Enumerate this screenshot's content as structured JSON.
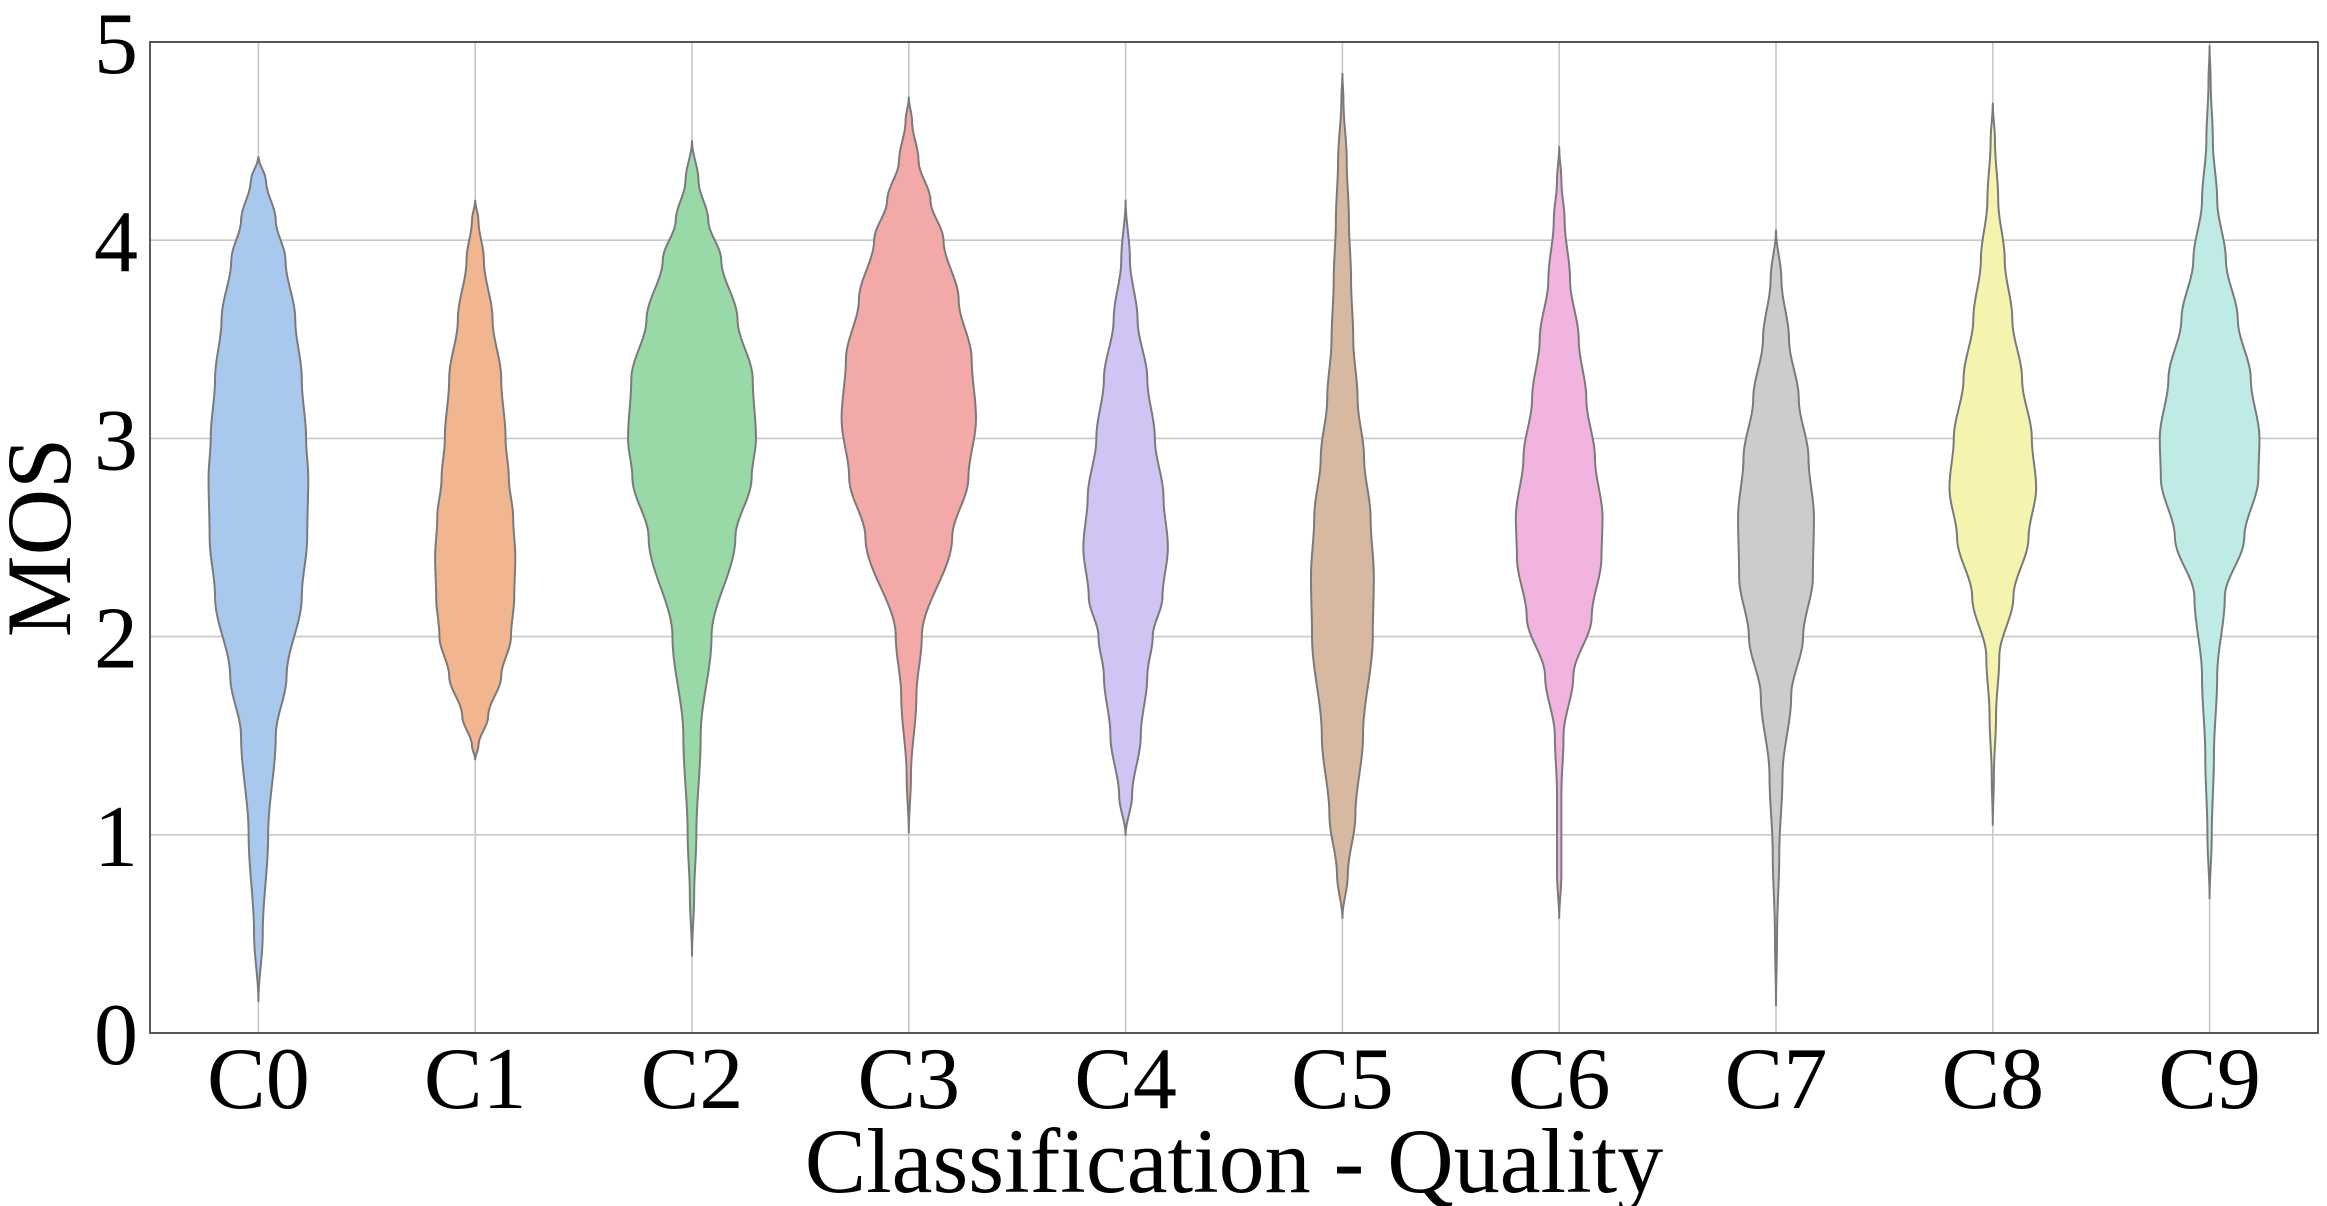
{
  "chart_data": {
    "type": "violin",
    "title": "",
    "xlabel": "Classification - Quality",
    "ylabel": "MOS",
    "ylim": [
      0,
      5
    ],
    "yticks": [
      "0",
      "1",
      "2",
      "3",
      "4",
      "5"
    ],
    "grid": true,
    "categories": [
      "C0",
      "C1",
      "C2",
      "C3",
      "C4",
      "C5",
      "C6",
      "C7",
      "C8",
      "C9"
    ],
    "edge_color": "#7a7a7a",
    "grid_color": "#c8c8c8",
    "series": [
      {
        "name": "C0",
        "color": "#a9c8ee",
        "min": 0.16,
        "max": 4.42,
        "profile": [
          [
            0.16,
            0.0
          ],
          [
            0.5,
            0.04
          ],
          [
            1.0,
            0.09
          ],
          [
            1.5,
            0.16
          ],
          [
            1.8,
            0.26
          ],
          [
            2.2,
            0.4
          ],
          [
            2.5,
            0.45
          ],
          [
            2.8,
            0.46
          ],
          [
            3.0,
            0.44
          ],
          [
            3.3,
            0.4
          ],
          [
            3.6,
            0.34
          ],
          [
            3.9,
            0.25
          ],
          [
            4.1,
            0.16
          ],
          [
            4.3,
            0.07
          ],
          [
            4.42,
            0.0
          ]
        ]
      },
      {
        "name": "C1",
        "color": "#f1b68f",
        "min": 1.38,
        "max": 4.2,
        "profile": [
          [
            1.38,
            0.0
          ],
          [
            1.45,
            0.03
          ],
          [
            1.6,
            0.12
          ],
          [
            1.8,
            0.24
          ],
          [
            2.0,
            0.33
          ],
          [
            2.2,
            0.36
          ],
          [
            2.4,
            0.37
          ],
          [
            2.6,
            0.35
          ],
          [
            2.8,
            0.31
          ],
          [
            3.0,
            0.28
          ],
          [
            3.3,
            0.24
          ],
          [
            3.6,
            0.16
          ],
          [
            3.9,
            0.08
          ],
          [
            4.1,
            0.03
          ],
          [
            4.2,
            0.0
          ]
        ]
      },
      {
        "name": "C2",
        "color": "#99d9a7",
        "min": 0.39,
        "max": 4.5,
        "profile": [
          [
            0.39,
            0.0
          ],
          [
            0.7,
            0.02
          ],
          [
            1.0,
            0.04
          ],
          [
            1.5,
            0.08
          ],
          [
            2.0,
            0.18
          ],
          [
            2.5,
            0.4
          ],
          [
            2.8,
            0.55
          ],
          [
            3.0,
            0.59
          ],
          [
            3.3,
            0.56
          ],
          [
            3.6,
            0.42
          ],
          [
            3.9,
            0.27
          ],
          [
            4.1,
            0.15
          ],
          [
            4.3,
            0.06
          ],
          [
            4.5,
            0.0
          ]
        ]
      },
      {
        "name": "C3",
        "color": "#f3a9a7",
        "min": 1.01,
        "max": 4.72,
        "profile": [
          [
            1.01,
            0.0
          ],
          [
            1.3,
            0.02
          ],
          [
            1.7,
            0.07
          ],
          [
            2.0,
            0.12
          ],
          [
            2.5,
            0.4
          ],
          [
            2.8,
            0.55
          ],
          [
            3.1,
            0.62
          ],
          [
            3.4,
            0.58
          ],
          [
            3.7,
            0.46
          ],
          [
            4.0,
            0.32
          ],
          [
            4.2,
            0.2
          ],
          [
            4.4,
            0.09
          ],
          [
            4.6,
            0.03
          ],
          [
            4.72,
            0.0
          ]
        ]
      },
      {
        "name": "C4",
        "color": "#d0c4f4",
        "min": 1.0,
        "max": 4.2,
        "profile": [
          [
            1.0,
            0.0
          ],
          [
            1.2,
            0.06
          ],
          [
            1.5,
            0.14
          ],
          [
            1.8,
            0.2
          ],
          [
            2.0,
            0.25
          ],
          [
            2.2,
            0.34
          ],
          [
            2.45,
            0.39
          ],
          [
            2.7,
            0.35
          ],
          [
            3.0,
            0.27
          ],
          [
            3.3,
            0.2
          ],
          [
            3.6,
            0.11
          ],
          [
            3.9,
            0.04
          ],
          [
            4.2,
            0.0
          ]
        ]
      },
      {
        "name": "C5",
        "color": "#d6b9a0",
        "min": 0.58,
        "max": 4.84,
        "profile": [
          [
            0.58,
            0.0
          ],
          [
            0.8,
            0.05
          ],
          [
            1.1,
            0.12
          ],
          [
            1.5,
            0.19
          ],
          [
            2.0,
            0.28
          ],
          [
            2.3,
            0.29
          ],
          [
            2.6,
            0.26
          ],
          [
            2.9,
            0.2
          ],
          [
            3.2,
            0.14
          ],
          [
            3.5,
            0.1
          ],
          [
            3.8,
            0.08
          ],
          [
            4.1,
            0.06
          ],
          [
            4.4,
            0.04
          ],
          [
            4.7,
            0.01
          ],
          [
            4.84,
            0.0
          ]
        ]
      },
      {
        "name": "C6",
        "color": "#f0b4df",
        "min": 0.58,
        "max": 4.47,
        "profile": [
          [
            0.58,
            0.0
          ],
          [
            0.8,
            0.02
          ],
          [
            1.2,
            0.02
          ],
          [
            1.5,
            0.04
          ],
          [
            1.8,
            0.13
          ],
          [
            2.1,
            0.3
          ],
          [
            2.4,
            0.39
          ],
          [
            2.6,
            0.4
          ],
          [
            2.9,
            0.33
          ],
          [
            3.2,
            0.25
          ],
          [
            3.5,
            0.18
          ],
          [
            3.8,
            0.1
          ],
          [
            4.1,
            0.05
          ],
          [
            4.3,
            0.02
          ],
          [
            4.47,
            0.0
          ]
        ]
      },
      {
        "name": "C7",
        "color": "#cccccc",
        "min": 0.14,
        "max": 4.05,
        "profile": [
          [
            0.14,
            0.0
          ],
          [
            0.5,
            0.01
          ],
          [
            0.9,
            0.03
          ],
          [
            1.3,
            0.06
          ],
          [
            1.7,
            0.14
          ],
          [
            2.0,
            0.25
          ],
          [
            2.3,
            0.34
          ],
          [
            2.6,
            0.35
          ],
          [
            2.9,
            0.3
          ],
          [
            3.2,
            0.21
          ],
          [
            3.5,
            0.12
          ],
          [
            3.8,
            0.05
          ],
          [
            4.05,
            0.0
          ]
        ]
      },
      {
        "name": "C8",
        "color": "#f4f4ae",
        "min": 1.05,
        "max": 4.69,
        "profile": [
          [
            1.05,
            0.0
          ],
          [
            1.3,
            0.01
          ],
          [
            1.6,
            0.03
          ],
          [
            1.9,
            0.06
          ],
          [
            2.2,
            0.19
          ],
          [
            2.5,
            0.33
          ],
          [
            2.75,
            0.4
          ],
          [
            3.0,
            0.36
          ],
          [
            3.3,
            0.27
          ],
          [
            3.6,
            0.18
          ],
          [
            3.9,
            0.11
          ],
          [
            4.2,
            0.05
          ],
          [
            4.5,
            0.02
          ],
          [
            4.69,
            0.0
          ]
        ]
      },
      {
        "name": "C9",
        "color": "#bfebe7",
        "min": 0.68,
        "max": 4.98,
        "profile": [
          [
            0.68,
            0.0
          ],
          [
            1.0,
            0.02
          ],
          [
            1.4,
            0.04
          ],
          [
            1.8,
            0.07
          ],
          [
            2.2,
            0.14
          ],
          [
            2.5,
            0.32
          ],
          [
            2.8,
            0.45
          ],
          [
            3.0,
            0.46
          ],
          [
            3.3,
            0.38
          ],
          [
            3.6,
            0.26
          ],
          [
            3.9,
            0.15
          ],
          [
            4.2,
            0.07
          ],
          [
            4.5,
            0.03
          ],
          [
            4.8,
            0.01
          ],
          [
            4.98,
            0.0
          ]
        ]
      }
    ]
  }
}
